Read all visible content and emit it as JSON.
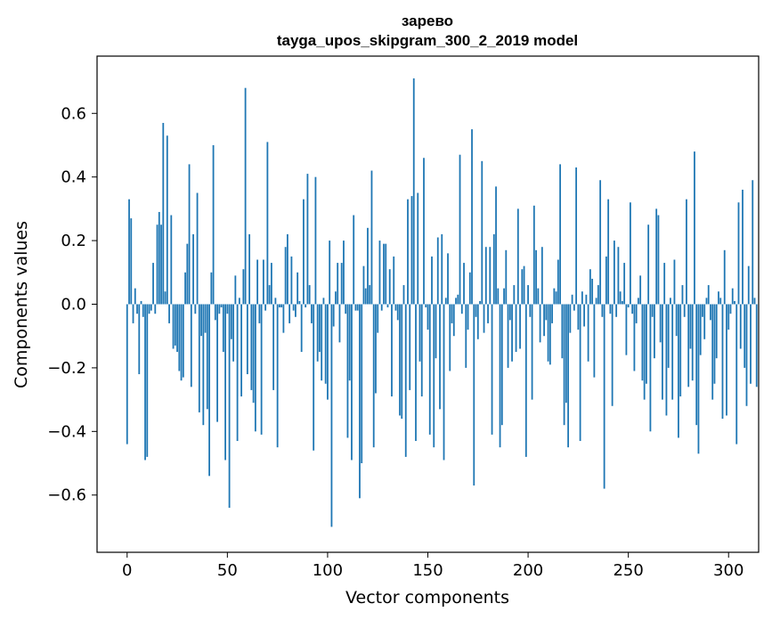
{
  "chart_data": {
    "type": "bar",
    "title": "зарево",
    "subtitle": "tayga_upos_skipgram_300_2_2019 model",
    "xlabel": "Vector components",
    "ylabel": "Components values",
    "xlim": [
      -15,
      315
    ],
    "ylim": [
      -0.78,
      0.78
    ],
    "xticks": [
      0,
      50,
      100,
      150,
      200,
      250,
      300
    ],
    "yticks": [
      -0.6,
      -0.4,
      -0.2,
      0.0,
      0.2,
      0.4,
      0.6
    ],
    "xtick_labels": [
      "0",
      "50",
      "100",
      "150",
      "200",
      "250",
      "300"
    ],
    "ytick_labels": [
      "−0.6",
      "−0.4",
      "−0.2",
      "0.0",
      "0.2",
      "0.4",
      "0.6"
    ],
    "bar_color": "#1f77b4",
    "grid": false,
    "values": [
      -0.44,
      0.33,
      0.27,
      -0.06,
      0.05,
      -0.03,
      -0.22,
      0.01,
      -0.04,
      -0.49,
      -0.48,
      -0.03,
      -0.02,
      0.13,
      -0.03,
      0.25,
      0.29,
      0.25,
      0.57,
      0.04,
      0.53,
      -0.06,
      0.28,
      -0.14,
      -0.13,
      -0.15,
      -0.21,
      -0.24,
      -0.23,
      0.1,
      0.19,
      0.44,
      -0.26,
      0.22,
      -0.03,
      0.35,
      -0.34,
      -0.1,
      -0.38,
      -0.09,
      -0.33,
      -0.54,
      0.1,
      0.5,
      -0.05,
      -0.37,
      -0.03,
      -0.01,
      -0.15,
      -0.49,
      -0.03,
      -0.64,
      -0.11,
      -0.18,
      0.09,
      -0.43,
      0.02,
      -0.29,
      0.11,
      0.68,
      -0.22,
      0.22,
      -0.27,
      -0.31,
      -0.4,
      0.14,
      -0.06,
      -0.41,
      0.14,
      -0.02,
      0.51,
      0.06,
      0.13,
      -0.27,
      0.02,
      -0.45,
      -0.01,
      -0.01,
      -0.09,
      0.18,
      0.22,
      -0.06,
      0.15,
      -0.02,
      -0.04,
      0.1,
      0.01,
      -0.15,
      0.33,
      -0.01,
      0.41,
      0.06,
      -0.06,
      -0.46,
      0.4,
      -0.18,
      -0.15,
      -0.24,
      0.02,
      -0.25,
      -0.3,
      0.2,
      -0.7,
      -0.07,
      0.04,
      0.13,
      -0.12,
      0.13,
      0.2,
      -0.03,
      -0.42,
      -0.24,
      -0.49,
      0.28,
      -0.02,
      -0.02,
      -0.61,
      -0.5,
      0.12,
      0.05,
      0.24,
      0.06,
      0.42,
      -0.45,
      -0.28,
      -0.09,
      0.2,
      -0.02,
      0.19,
      0.19,
      -0.01,
      0.11,
      -0.29,
      0.15,
      -0.02,
      -0.05,
      -0.35,
      -0.36,
      0.06,
      -0.48,
      0.33,
      -0.27,
      0.34,
      0.71,
      -0.43,
      0.35,
      -0.18,
      -0.29,
      0.46,
      -0.01,
      -0.08,
      -0.41,
      0.15,
      -0.45,
      -0.17,
      0.21,
      -0.33,
      0.22,
      -0.49,
      0.02,
      0.16,
      -0.21,
      -0.06,
      -0.1,
      0.02,
      0.03,
      0.47,
      -0.03,
      0.13,
      -0.2,
      -0.08,
      0.1,
      0.55,
      -0.57,
      -0.04,
      -0.11,
      0.01,
      0.45,
      -0.09,
      0.18,
      -0.06,
      0.18,
      -0.41,
      0.22,
      0.37,
      0.05,
      -0.45,
      -0.38,
      0.05,
      0.17,
      -0.2,
      -0.05,
      -0.18,
      0.06,
      -0.15,
      0.3,
      -0.14,
      0.11,
      0.12,
      -0.48,
      0.06,
      -0.04,
      -0.3,
      0.31,
      0.17,
      0.05,
      -0.12,
      0.18,
      -0.1,
      -0.05,
      -0.18,
      -0.19,
      -0.06,
      0.05,
      0.04,
      0.14,
      0.44,
      -0.17,
      -0.38,
      -0.31,
      -0.45,
      -0.09,
      0.03,
      -0.02,
      0.43,
      -0.08,
      -0.43,
      0.04,
      -0.07,
      0.03,
      -0.18,
      0.11,
      0.08,
      -0.23,
      0.02,
      0.06,
      0.39,
      -0.04,
      -0.58,
      0.15,
      0.33,
      -0.03,
      -0.32,
      0.2,
      -0.04,
      0.18,
      0.04,
      0.01,
      0.13,
      -0.16,
      -0.01,
      0.32,
      -0.03,
      -0.21,
      -0.06,
      0.02,
      0.09,
      -0.24,
      -0.3,
      -0.25,
      0.25,
      -0.4,
      -0.04,
      -0.17,
      0.3,
      0.28,
      -0.12,
      -0.3,
      0.13,
      -0.35,
      -0.2,
      0.02,
      -0.3,
      0.14,
      -0.1,
      -0.42,
      -0.29,
      0.06,
      -0.04,
      0.33,
      -0.26,
      -0.14,
      -0.24,
      0.48,
      -0.38,
      -0.47,
      -0.16,
      -0.04,
      -0.11,
      0.02,
      0.06,
      -0.05,
      -0.3,
      -0.25,
      -0.17,
      0.04,
      0.02,
      -0.36,
      0.17,
      -0.35,
      -0.08,
      -0.03,
      0.05,
      0.01,
      -0.44,
      0.32,
      -0.14,
      0.36,
      -0.2,
      -0.32,
      0.12,
      -0.25,
      0.39,
      0.02,
      -0.26
    ]
  }
}
